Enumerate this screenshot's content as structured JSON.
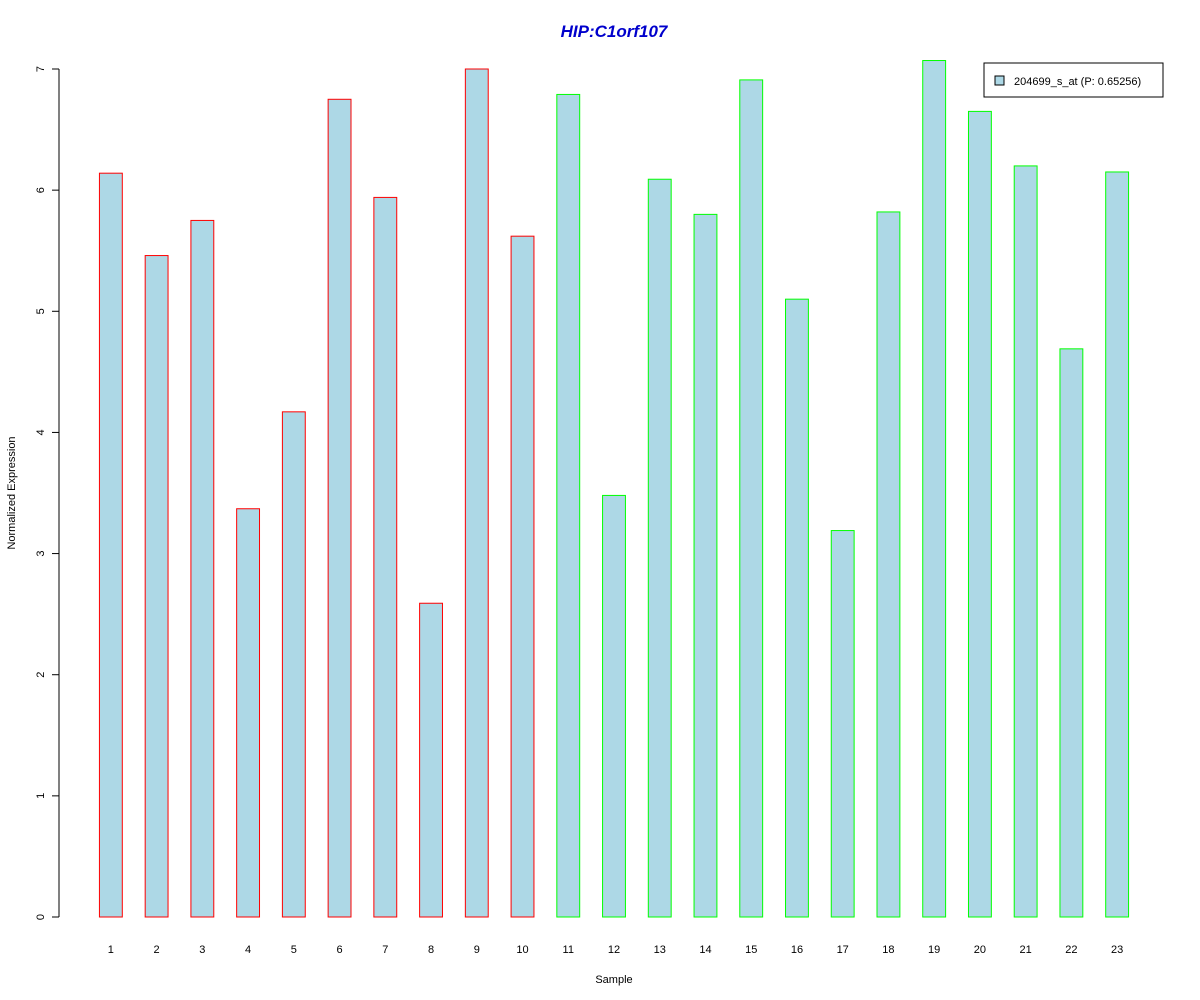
{
  "chart_data": {
    "type": "bar",
    "title": "HIP:C1orf107",
    "xlabel": "Sample",
    "ylabel": "Normalized Expression",
    "categories": [
      "1",
      "2",
      "3",
      "4",
      "5",
      "6",
      "7",
      "8",
      "9",
      "10",
      "11",
      "12",
      "13",
      "14",
      "15",
      "16",
      "17",
      "18",
      "19",
      "20",
      "21",
      "22",
      "23"
    ],
    "series": [
      {
        "name": "204699_s_at (P: 0.65256)",
        "values": [
          6.14,
          5.46,
          5.75,
          3.37,
          4.17,
          6.75,
          5.94,
          2.59,
          7.0,
          5.62,
          6.79,
          3.48,
          6.09,
          5.8,
          6.91,
          5.1,
          3.19,
          5.82,
          7.07,
          6.65,
          6.2,
          4.69,
          6.15
        ]
      }
    ],
    "bar_outline_colors": [
      "#ff0000",
      "#ff0000",
      "#ff0000",
      "#ff0000",
      "#ff0000",
      "#ff0000",
      "#ff0000",
      "#ff0000",
      "#ff0000",
      "#ff0000",
      "#00ff00",
      "#00ff00",
      "#00ff00",
      "#00ff00",
      "#00ff00",
      "#00ff00",
      "#00ff00",
      "#00ff00",
      "#00ff00",
      "#00ff00",
      "#00ff00",
      "#00ff00",
      "#00ff00"
    ],
    "y_ticks": [
      0,
      1,
      2,
      3,
      4,
      5,
      6,
      7
    ],
    "ylim": [
      0,
      7.07
    ],
    "grid": false,
    "legend_position": "top-right",
    "colors": {
      "bar_fill": "#add8e6",
      "title": "#0000cc",
      "axis": "#000000"
    }
  }
}
